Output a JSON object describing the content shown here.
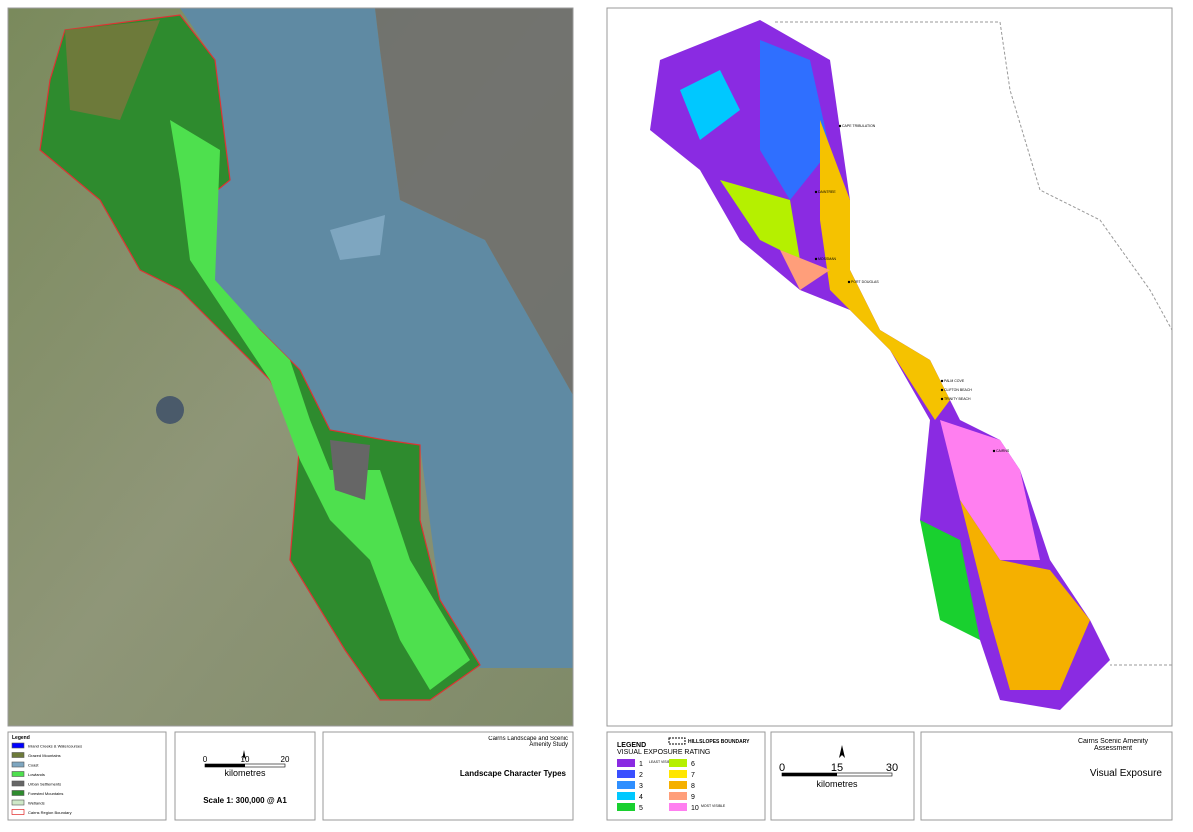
{
  "left": {
    "legend": {
      "title": "Legend",
      "items": [
        "Inland Creeks & Watercourses",
        "Grazed Mountains",
        "Coast",
        "Lowlands",
        "Urban Settlements",
        "Forested Mountains",
        "Wetlands",
        "Cairns Region Boundary"
      ]
    },
    "scale": {
      "ticks": [
        "0",
        "10",
        "20"
      ],
      "unit": "kilometres",
      "ratio": "Scale 1: 300,000 @ A1"
    },
    "study": "Cairns Landscape and Scenic Amenity Study",
    "title": "Landscape Character Types"
  },
  "right": {
    "legend": {
      "title": "LEGEND",
      "boundary": "HILLSLOPES BOUNDARY",
      "subtitle": "VISUAL EXPOSURE RATING",
      "ratings": [
        {
          "label": "1",
          "note": "LEAST VISIBLE"
        },
        {
          "label": "2"
        },
        {
          "label": "3"
        },
        {
          "label": "4"
        },
        {
          "label": "5"
        },
        {
          "label": "6"
        },
        {
          "label": "7"
        },
        {
          "label": "8"
        },
        {
          "label": "9"
        },
        {
          "label": "10",
          "note": "MOST VISIBLE"
        }
      ]
    },
    "scale": {
      "ticks": [
        "0",
        "15",
        "30"
      ],
      "unit": "kilometres"
    },
    "places": [
      "CAPE TRIBULATION",
      "DAINTREE",
      "MOSSMAN",
      "PORT DOUGLAS",
      "PALM COVE",
      "CLIFTON BEACH",
      "TRINITY BEACH",
      "CAIRNS"
    ],
    "study": "Cairns Scenic Amenity Assessment",
    "title": "Visual Exposure"
  }
}
